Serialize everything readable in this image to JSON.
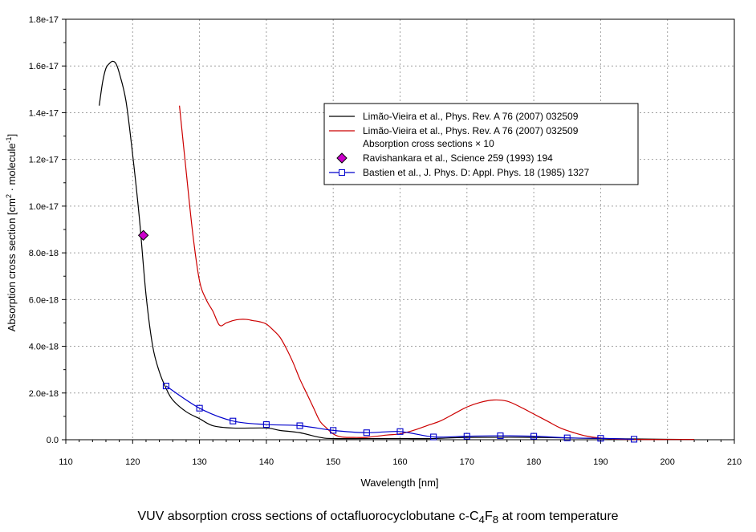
{
  "chart_data": {
    "type": "line",
    "xlabel": "Wavelength [nm]",
    "ylabel": "Absorption cross section [cm",
    "ylabel_sup1": "2",
    "ylabel_mid": " · molecule",
    "ylabel_sup2": "-1",
    "ylabel_end": "]",
    "xlim": [
      110,
      210
    ],
    "ylim": [
      0,
      1.8e-17
    ],
    "xticks": [
      110,
      120,
      130,
      140,
      150,
      160,
      170,
      180,
      190,
      200,
      210
    ],
    "yticks": [
      0,
      2e-18,
      4e-18,
      6e-18,
      8e-18,
      1e-17,
      1.2e-17,
      1.4e-17,
      1.6e-17,
      1.8e-17
    ],
    "ytick_labels": [
      "0.0",
      "2.0e-18",
      "4.0e-18",
      "6.0e-18",
      "8.0e-18",
      "1.0e-17",
      "1.2e-17",
      "1.4e-17",
      "1.6e-17",
      "1.8e-17"
    ],
    "grid": true,
    "legend_position": "upper-right",
    "series": [
      {
        "name": "Limão-Vieira et al., Phys. Rev. A 76 (2007) 032509",
        "color": "#000000",
        "marker": "none",
        "x": [
          115,
          115.5,
          116,
          116.5,
          117,
          117.5,
          118,
          119,
          120,
          121,
          122,
          123,
          124,
          125,
          126,
          128,
          130,
          132,
          135,
          140,
          142,
          145,
          148,
          150,
          155,
          160,
          165,
          170,
          180,
          190,
          200,
          204
        ],
        "y": [
          1.43e-17,
          1.53e-17,
          1.59e-17,
          1.61e-17,
          1.62e-17,
          1.61e-17,
          1.57e-17,
          1.45e-17,
          1.22e-17,
          9.5e-18,
          6.2e-18,
          4e-18,
          2.9e-18,
          2.2e-18,
          1.7e-18,
          1.2e-18,
          9e-19,
          6e-19,
          5e-19,
          5e-19,
          4e-19,
          3e-19,
          1e-19,
          5e-20,
          5e-20,
          5e-20,
          5e-20,
          1e-19,
          1e-19,
          5e-20,
          2e-20,
          1e-20
        ]
      },
      {
        "name": "Limão-Vieira et al., Phys. Rev. A 76 (2007) 032509",
        "name_line2": "Absorption cross sections × 10",
        "color": "#cc0000",
        "marker": "none",
        "x": [
          127,
          128,
          129,
          130,
          131,
          132,
          133,
          134,
          135,
          136,
          137,
          138,
          139,
          140,
          141,
          142,
          143,
          144,
          145,
          146,
          147,
          148,
          149,
          150,
          151,
          152,
          153,
          155,
          158,
          160,
          162,
          164,
          166,
          168,
          170,
          172,
          174,
          176,
          178,
          180,
          182,
          184,
          186,
          188,
          190,
          192,
          195,
          200,
          204
        ],
        "y": [
          1.43e-17,
          1.15e-17,
          8.8e-18,
          6.8e-18,
          6e-18,
          5.5e-18,
          4.9e-18,
          5e-18,
          5.1e-18,
          5.15e-18,
          5.15e-18,
          5.1e-18,
          5.05e-18,
          4.95e-18,
          4.7e-18,
          4.4e-18,
          3.9e-18,
          3.3e-18,
          2.6e-18,
          2e-18,
          1.4e-18,
          8e-19,
          5e-19,
          2.5e-19,
          1.3e-19,
          1e-19,
          1e-19,
          1e-19,
          2e-19,
          2.5e-19,
          4e-19,
          6e-19,
          8e-19,
          1.1e-18,
          1.4e-18,
          1.6e-18,
          1.7e-18,
          1.65e-18,
          1.4e-18,
          1.1e-18,
          8e-19,
          5e-19,
          3e-19,
          1.5e-19,
          7e-20,
          3e-20,
          1e-20,
          1e-20,
          1e-20
        ]
      },
      {
        "name": "Ravishankara et al., Science 259 (1993) 194",
        "color": "#cc00cc",
        "marker": "diamond",
        "x": [
          121.6
        ],
        "y": [
          8.75e-18
        ]
      },
      {
        "name": "Bastien et al., J. Phys. D: Appl. Phys. 18 (1985) 1327",
        "color": "#0000cc",
        "marker": "square-open",
        "x": [
          125,
          130,
          135,
          140,
          145,
          150,
          155,
          160,
          165,
          170,
          175,
          180,
          185,
          190,
          195
        ],
        "y": [
          2.3e-18,
          1.35e-18,
          8e-19,
          6.5e-19,
          6e-19,
          4e-19,
          3e-19,
          3.5e-19,
          1.2e-19,
          1.5e-19,
          1.7e-19,
          1.5e-19,
          8e-20,
          6e-20,
          2e-20
        ]
      }
    ],
    "caption_prefix": "VUV absorption cross sections of octafluorocyclobutane c-C",
    "caption_sub1": "4",
    "caption_mid": "F",
    "caption_sub2": "8",
    "caption_suffix": " at room temperature"
  }
}
